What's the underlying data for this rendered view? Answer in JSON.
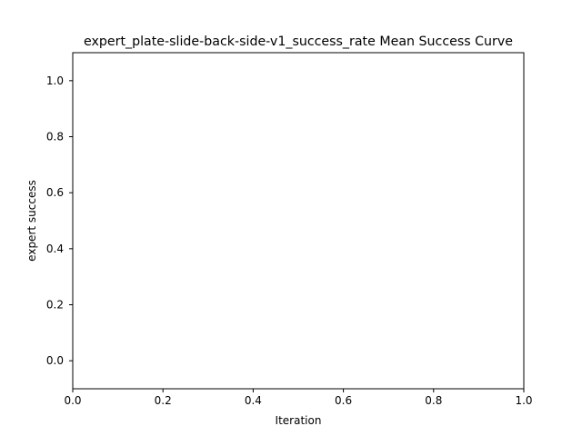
{
  "chart_data": {
    "type": "line",
    "title": "expert_plate-slide-back-side-v1_success_rate Mean Success Curve",
    "xlabel": "Iteration",
    "ylabel": "expert success",
    "xlim": [
      0.0,
      1.0
    ],
    "ylim": [
      -0.1,
      1.1
    ],
    "xticks": [
      "0.0",
      "0.2",
      "0.4",
      "0.6",
      "0.8",
      "1.0"
    ],
    "yticks": [
      "0.0",
      "0.2",
      "0.4",
      "0.6",
      "0.8",
      "1.0"
    ],
    "grid": false,
    "series": [],
    "colors": {
      "axes": "#000000",
      "background": "#ffffff"
    }
  }
}
